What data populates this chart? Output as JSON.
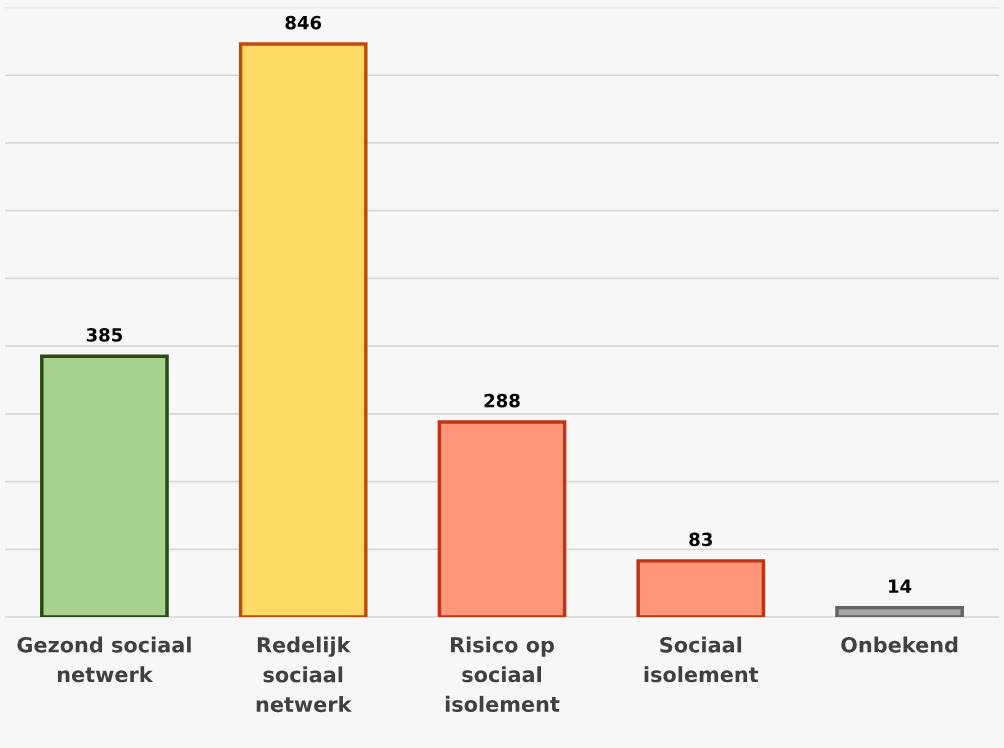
{
  "chart_data": {
    "type": "bar",
    "categories": [
      "Gezond sociaal\nnetwerk",
      "Redelijk\nsociaal\nnetwerk",
      "Risico op\nsociaal\nisolement",
      "Sociaal\nisolement",
      "Onbekend"
    ],
    "values": [
      385,
      846,
      288,
      83,
      14
    ],
    "colors": [
      "#a9d18e",
      "#ffd966",
      "#ff9579",
      "#ff9579",
      "#a6a6a6"
    ],
    "ylim": [
      0,
      900
    ],
    "yticks": [
      {
        "value": 0,
        "label": null
      },
      {
        "value": 100,
        "label": null
      },
      {
        "value": 200,
        "label": null
      },
      {
        "value": 300,
        "label": null
      },
      {
        "value": 400,
        "label": null
      },
      {
        "value": 500,
        "label": null
      },
      {
        "value": 600,
        "label": null
      },
      {
        "value": 700,
        "label": null
      },
      {
        "value": 800,
        "label": null
      },
      {
        "value": 900,
        "label": null
      }
    ],
    "tick_labels": "x",
    "grid": "y",
    "data_labels": true
  }
}
